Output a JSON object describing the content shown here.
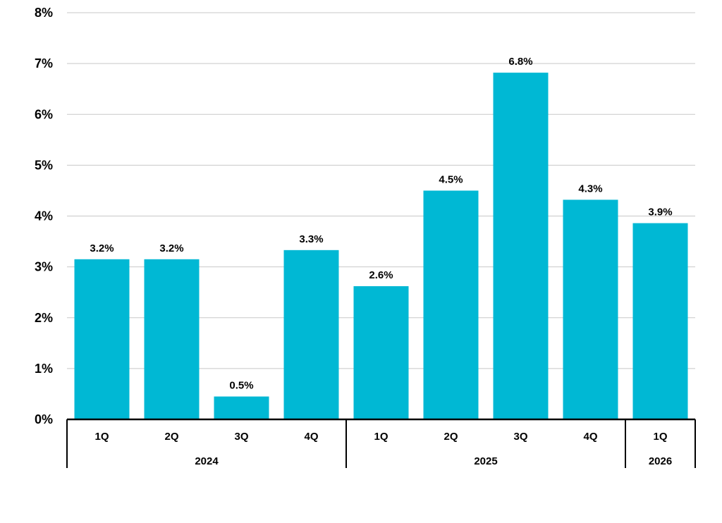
{
  "chart_data": {
    "type": "bar",
    "categories": [
      "1Q",
      "2Q",
      "3Q",
      "4Q",
      "1Q",
      "2Q",
      "3Q",
      "4Q",
      "1Q"
    ],
    "groups": [
      {
        "label": "2024",
        "count": 4
      },
      {
        "label": "2025",
        "count": 4
      },
      {
        "label": "2026",
        "count": 1
      }
    ],
    "values": [
      3.15,
      3.15,
      0.45,
      3.33,
      2.62,
      4.5,
      6.82,
      4.32,
      3.86
    ],
    "data_labels": [
      "3.2%",
      "3.2%",
      "0.5%",
      "3.3%",
      "2.6%",
      "4.5%",
      "6.8%",
      "4.3%",
      "3.9%"
    ],
    "ylim": [
      0,
      8
    ],
    "yticks": [
      0,
      1,
      2,
      3,
      4,
      5,
      6,
      7,
      8
    ],
    "ytick_labels": [
      "0%",
      "1%",
      "2%",
      "3%",
      "4%",
      "5%",
      "6%",
      "7%",
      "8%"
    ],
    "grid": true,
    "bar_color": "#00B8D4"
  }
}
